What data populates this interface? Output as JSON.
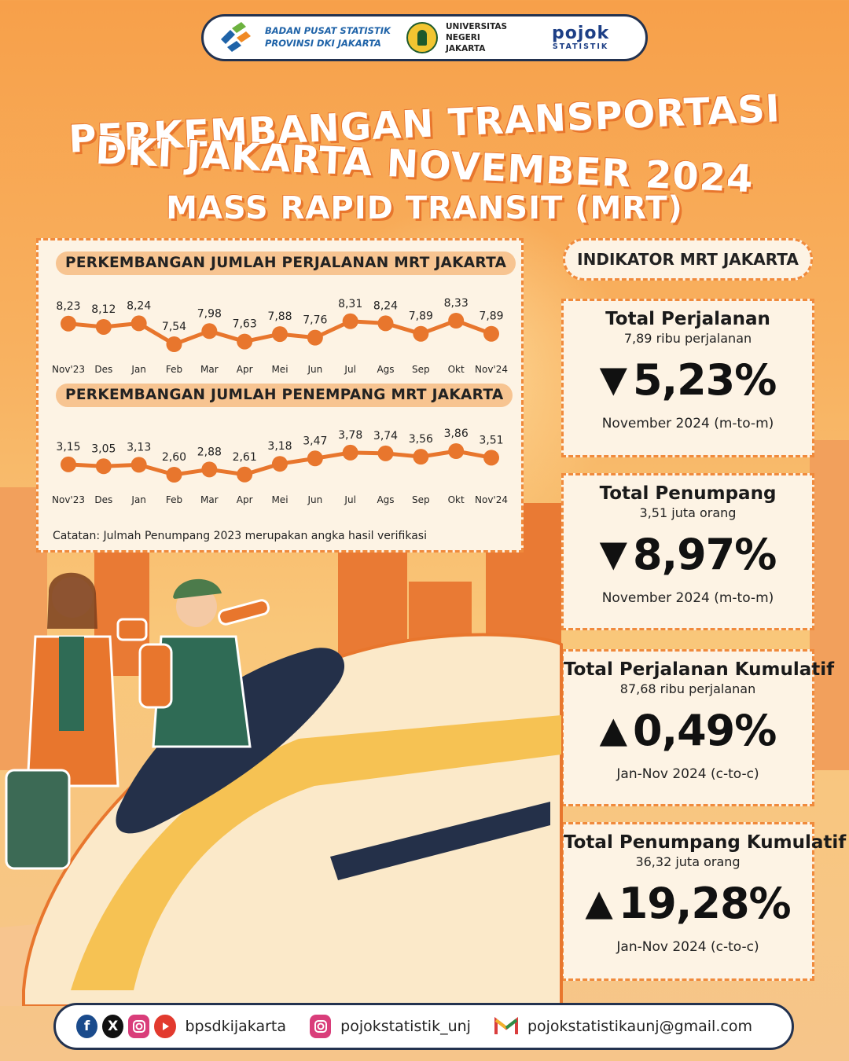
{
  "header": {
    "bps_line1": "BADAN PUSAT STATISTIK",
    "bps_line2": "PROVINSI DKI JAKARTA",
    "unj_line1": "UNIVERSITAS NEGERI",
    "unj_line2": "JAKARTA",
    "pojok_main": "pojok",
    "pojok_sub": "STATISTIK"
  },
  "titles": {
    "line1": "PERKEMBANGAN TRANSPORTASI",
    "line2": "DKI JAKARTA NOVEMBER 2024",
    "line3": "MASS RAPID TRANSIT (MRT)"
  },
  "chart_data": [
    {
      "type": "line",
      "title": "PERKEMBANGAN JUMLAH PERJALANAN MRT JAKARTA",
      "categories": [
        "Nov'23",
        "Des",
        "Jan",
        "Feb",
        "Mar",
        "Apr",
        "Mei",
        "Jun",
        "Jul",
        "Ags",
        "Sep",
        "Okt",
        "Nov'24"
      ],
      "values": [
        8.23,
        8.12,
        8.24,
        7.54,
        7.98,
        7.63,
        7.88,
        7.76,
        8.31,
        8.24,
        7.89,
        8.33,
        7.89
      ],
      "labels": [
        "8,23",
        "8,12",
        "8,24",
        "7,54",
        "7,98",
        "7,63",
        "7,88",
        "7,76",
        "8,31",
        "8,24",
        "7,89",
        "8,33",
        "7,89"
      ],
      "color": "#e8762d"
    },
    {
      "type": "line",
      "title": "PERKEMBANGAN JUMLAH PENEMPANG MRT JAKARTA",
      "categories": [
        "Nov'23",
        "Des",
        "Jan",
        "Feb",
        "Mar",
        "Apr",
        "Mei",
        "Jun",
        "Jul",
        "Ags",
        "Sep",
        "Okt",
        "Nov'24"
      ],
      "values": [
        3.15,
        3.05,
        3.13,
        2.6,
        2.88,
        2.61,
        3.18,
        3.47,
        3.78,
        3.74,
        3.56,
        3.86,
        3.51
      ],
      "labels": [
        "3,15",
        "3,05",
        "3,13",
        "2,60",
        "2,88",
        "2,61",
        "3,18",
        "3,47",
        "3,78",
        "3,74",
        "3,56",
        "3,86",
        "3,51"
      ],
      "color": "#e8762d"
    }
  ],
  "chart_note": "Catatan: Julmah Penumpang 2023 merupakan angka hasil verifikasi",
  "indicator": {
    "header": "INDIKATOR MRT JAKARTA",
    "cards": [
      {
        "title": "Total Perjalanan",
        "sub": "7,89 ribu perjalanan",
        "arrow": "▼",
        "value": "5,23%",
        "period": "November 2024 (m-to-m)"
      },
      {
        "title": "Total Penumpang",
        "sub": "3,51 juta orang",
        "arrow": "▼",
        "value": "8,97%",
        "period": "November 2024 (m-to-m)"
      },
      {
        "title": "Total Perjalanan Kumulatif",
        "sub": "87,68 ribu perjalanan",
        "arrow": "▲",
        "value": "0,49%",
        "period": "Jan-Nov 2024 (c-to-c)"
      },
      {
        "title": "Total Penumpang Kumulatif",
        "sub": "36,32 juta orang",
        "arrow": "▲",
        "value": "19,28%",
        "period": "Jan-Nov 2024 (c-to-c)"
      }
    ]
  },
  "footer": {
    "social1": "bpsdkijakarta",
    "social2": "pojokstatistik_unj",
    "email": "pojokstatistikaunj@gmail.com",
    "icons": [
      "facebook-icon",
      "x-icon",
      "instagram-icon",
      "youtube-icon",
      "instagram-icon",
      "gmail-icon"
    ]
  }
}
